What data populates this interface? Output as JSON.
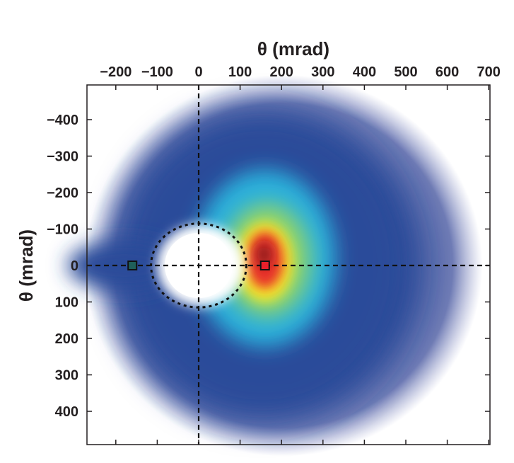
{
  "chart_data": {
    "type": "heatmap",
    "title": "",
    "xlabel": "θ (mrad)",
    "ylabel": "θ (mrad)",
    "xlim": [
      -270,
      705
    ],
    "ylim": [
      -485,
      500
    ],
    "y_inverted": true,
    "x_ticks": [
      -200,
      -100,
      0,
      100,
      200,
      300,
      400,
      500,
      600,
      700
    ],
    "x_tick_labels": [
      "−200",
      "−100",
      "0",
      "100",
      "200",
      "300",
      "400",
      "500",
      "600",
      "700"
    ],
    "y_ticks": [
      -400,
      -300,
      -200,
      -100,
      0,
      100,
      200,
      300,
      400
    ],
    "y_tick_labels": [
      "−400",
      "−300",
      "−200",
      "−100",
      "0",
      "100",
      "200",
      "300",
      "400"
    ],
    "reference_lines": {
      "x": 0,
      "y": 0,
      "style": "dashed"
    },
    "reference_circle": {
      "center": [
        0,
        0
      ],
      "radius": 115,
      "style": "dotted"
    },
    "markers": [
      {
        "x": -160,
        "y": 0,
        "shape": "square",
        "color": "#1f5f5a"
      },
      {
        "x": 160,
        "y": 0,
        "shape": "square",
        "color": "#e8202a"
      }
    ],
    "features": {
      "halo_center": [
        205,
        0
      ],
      "halo_radius": 480,
      "peak_center": [
        160,
        -15
      ],
      "hole_center": [
        0,
        0
      ]
    },
    "colormap": [
      "#ffffff",
      "#3b4fa0",
      "#2aa9d8",
      "#7fd07a",
      "#f3ea2a",
      "#ef3b24",
      "#7a1010"
    ],
    "grid": false
  }
}
